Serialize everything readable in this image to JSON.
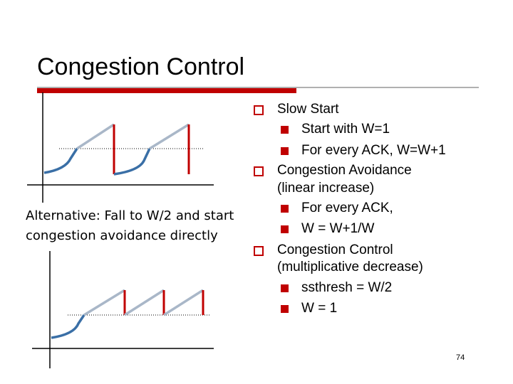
{
  "slide": {
    "title": "Congestion Control",
    "page_number": "74"
  },
  "bullets": [
    {
      "level": 1,
      "text": "Slow Start"
    },
    {
      "level": 2,
      "text": "Start with W=1"
    },
    {
      "level": 2,
      "text": "For every ACK, W=W+1"
    },
    {
      "level": 1,
      "text": "Congestion Avoidance"
    },
    {
      "level": 1,
      "text": "(linear increase)",
      "continuation": true
    },
    {
      "level": 2,
      "text": "For every ACK,"
    },
    {
      "level": 2,
      "text": "W = W+1/W"
    },
    {
      "level": 1,
      "text": "Congestion Control"
    },
    {
      "level": 1,
      "text": "(multiplicative decrease)",
      "continuation": true
    },
    {
      "level": 2,
      "text": "ssthresh = W/2"
    },
    {
      "level": 2,
      "text": "W = 1"
    }
  ],
  "alternative_note": {
    "line1": "Alternative: Fall to W/2 and start",
    "line2": "congestion avoidance directly"
  },
  "colors": {
    "slow_start_curve": "#3a6fa6",
    "linear_increase": "#a9b7c8",
    "drop": "#c00000",
    "accent": "#c00000",
    "axis": "#000000"
  }
}
